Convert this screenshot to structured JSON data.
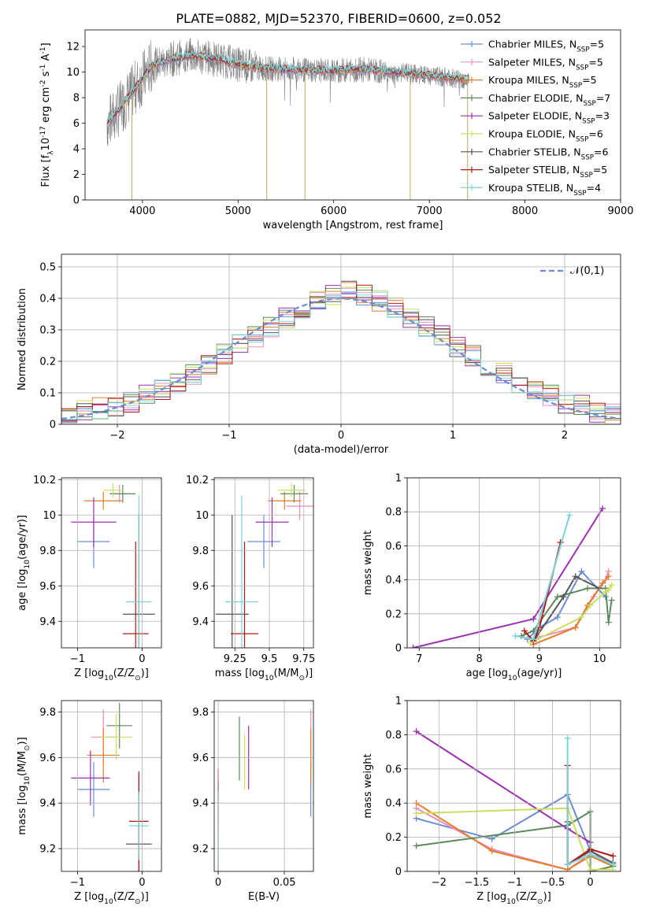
{
  "page_title": "PLATE=0882, MJD=52370, FIBERID=0600, z=0.052",
  "model_names": [
    "Chabrier MILES, N$_{SSP}$=5",
    "Salpeter MILES, N$_{SSP}$=5",
    "Kroupa MILES, N$_{SSP}$=5",
    "Chabrier ELODIE, N$_{SSP}$=7",
    "Salpeter ELODIE, N$_{SSP}$=3",
    "Kroupa ELODIE, N$_{SSP}$=6",
    "Chabrier STELIB, N$_{SSP}$=6",
    "Salpeter STELIB, N$_{SSP}$=5",
    "Kroupa STELIB, N$_{SSP}$=4"
  ],
  "model_colors": [
    "#6a8cd4",
    "#e88fbf",
    "#e87b2a",
    "#5a8a5a",
    "#9b2fb0",
    "#c8e060",
    "#555555",
    "#b01818",
    "#7ad4dc"
  ],
  "chart_data": [
    {
      "type": "line",
      "title": "PLATE=0882, MJD=52370, FIBERID=0600, z=0.052",
      "xlabel": "wavelength [Angstrom, rest frame]",
      "ylabel": "Flux [f$_\\lambda$10$^{-17}$ erg cm$^{-2}$ s$^{-1}$ A$^{-1}$]",
      "xlim": [
        3400,
        9000
      ],
      "ylim": [
        0,
        13.3
      ],
      "xticks": [
        4000,
        5000,
        6000,
        7000,
        8000,
        9000
      ],
      "yticks": [
        0,
        2,
        4,
        6,
        8,
        10,
        12
      ],
      "grid": false,
      "legend": "right",
      "data_range": [
        3630,
        7420
      ],
      "continuum": {
        "x": [
          3630,
          3700,
          3800,
          3900,
          4000,
          4100,
          4300,
          4500,
          4800,
          5000,
          5200,
          5500,
          6000,
          6300,
          6600,
          6800,
          7000,
          7200,
          7400
        ],
        "y": [
          6.0,
          6.5,
          7.5,
          8.5,
          9.5,
          10.5,
          11.0,
          11.3,
          11.0,
          10.6,
          10.3,
          10.2,
          10.1,
          10.2,
          10.0,
          9.9,
          9.7,
          9.6,
          9.4
        ]
      },
      "data_dips": [
        [
          3890,
          0
        ],
        [
          5300,
          0
        ],
        [
          5700,
          0
        ],
        [
          6800,
          0
        ],
        [
          7400,
          0
        ]
      ]
    },
    {
      "type": "bar",
      "xlabel": "(data-model)/error",
      "ylabel": "Normed distribution",
      "xlim": [
        -2.5,
        2.5
      ],
      "ylim": [
        0,
        0.54
      ],
      "xticks": [
        -2,
        -1,
        0,
        1,
        2
      ],
      "yticks": [
        0.0,
        0.1,
        0.2,
        0.3,
        0.4,
        0.5
      ],
      "grid": true,
      "legend": "top-right",
      "legend_label": "$\\mathcal{N}(0,1)$",
      "bins": 36,
      "base_values": [
        0.03,
        0.04,
        0.05,
        0.06,
        0.07,
        0.09,
        0.11,
        0.13,
        0.16,
        0.19,
        0.22,
        0.25,
        0.28,
        0.31,
        0.34,
        0.37,
        0.39,
        0.41,
        0.42,
        0.41,
        0.39,
        0.37,
        0.34,
        0.31,
        0.28,
        0.25,
        0.22,
        0.19,
        0.16,
        0.13,
        0.11,
        0.09,
        0.07,
        0.06,
        0.04,
        0.03
      ]
    },
    {
      "type": "scatter",
      "xlabel": "Z [log$_{10}$(Z/Z$_\\odot$)]",
      "ylabel": "age  [log$_{10}$(age/yr)]",
      "xlim": [
        -1.25,
        0.3
      ],
      "ylim": [
        9.25,
        10.21
      ],
      "xticks": [
        -1,
        0
      ],
      "yticks": [
        9.4,
        9.6,
        9.8,
        10.0,
        10.2
      ],
      "points": [
        {
          "x": -0.75,
          "y": 9.85,
          "xerr": 0.25,
          "yerr": 0.15
        },
        {
          "x": -0.35,
          "y": 10.12,
          "xerr": 0.15,
          "yerr": 0.05
        },
        {
          "x": -0.6,
          "y": 10.08,
          "xerr": 0.3,
          "yerr": 0.05
        },
        {
          "x": -0.3,
          "y": 10.12,
          "xerr": 0.2,
          "yerr": 0.05
        },
        {
          "x": -0.75,
          "y": 9.96,
          "xerr": 0.35,
          "yerr": 0.14
        },
        {
          "x": -0.45,
          "y": 10.14,
          "xerr": 0.15,
          "yerr": 0.04
        },
        {
          "x": -0.05,
          "y": 9.44,
          "xerr": 0.25,
          "yerr": 0.56
        },
        {
          "x": -0.1,
          "y": 9.33,
          "xerr": 0.2,
          "yerr": 0.52
        },
        {
          "x": -0.05,
          "y": 9.51,
          "xerr": 0.2,
          "yerr": 0.6
        }
      ]
    },
    {
      "type": "scatter",
      "xlabel": "mass [log$_{10}$(M/M$_\\odot$)]",
      "ylabel": "",
      "xlim": [
        9.1,
        9.82
      ],
      "ylim": [
        9.25,
        10.21
      ],
      "xticks": [
        9.25,
        9.5,
        9.75
      ],
      "yticks": [
        9.4,
        9.6,
        9.8,
        10.0,
        10.2
      ],
      "points": [
        {
          "x": 9.46,
          "y": 9.85,
          "xerr": 0.12,
          "yerr": 0.15
        },
        {
          "x": 9.72,
          "y": 10.05,
          "xerr": 0.1,
          "yerr": 0.08
        },
        {
          "x": 9.61,
          "y": 10.08,
          "xerr": 0.12,
          "yerr": 0.05
        },
        {
          "x": 9.68,
          "y": 10.12,
          "xerr": 0.1,
          "yerr": 0.05
        },
        {
          "x": 9.52,
          "y": 9.96,
          "xerr": 0.12,
          "yerr": 0.14
        },
        {
          "x": 9.66,
          "y": 10.14,
          "xerr": 0.1,
          "yerr": 0.04
        },
        {
          "x": 9.23,
          "y": 9.44,
          "xerr": 0.12,
          "yerr": 0.56
        },
        {
          "x": 9.32,
          "y": 9.33,
          "xerr": 0.1,
          "yerr": 0.52
        },
        {
          "x": 9.3,
          "y": 9.51,
          "xerr": 0.12,
          "yerr": 0.6
        }
      ]
    },
    {
      "type": "line",
      "xlabel": "age  [log$_{10}$(age/yr)]",
      "ylabel": "mass weight",
      "xlim": [
        6.8,
        10.35
      ],
      "ylim": [
        0,
        1
      ],
      "xticks": [
        7,
        8,
        9,
        10
      ],
      "yticks": [
        0.0,
        0.2,
        0.4,
        0.6,
        0.8,
        1.0
      ],
      "grid": true,
      "series": [
        {
          "x": [
            8.8,
            9.0,
            9.3,
            9.7,
            10.1
          ],
          "y": [
            0.05,
            0.12,
            0.18,
            0.45,
            0.3
          ]
        },
        {
          "x": [
            8.85,
            9.6,
            9.9,
            10.1,
            10.15
          ],
          "y": [
            0.05,
            0.12,
            0.3,
            0.4,
            0.45
          ]
        },
        {
          "x": [
            8.9,
            9.6,
            9.8,
            10.05,
            10.15
          ],
          "y": [
            0.02,
            0.12,
            0.25,
            0.38,
            0.42
          ]
        },
        {
          "x": [
            8.7,
            8.9,
            9.3,
            9.8,
            10.1,
            10.15,
            10.2
          ],
          "y": [
            0.07,
            0.1,
            0.3,
            0.35,
            0.35,
            0.15,
            0.28
          ]
        },
        {
          "x": [
            6.9,
            8.9,
            10.05
          ],
          "y": [
            0.0,
            0.17,
            0.82
          ]
        },
        {
          "x": [
            8.85,
            9.7,
            9.85,
            10.1,
            10.15,
            10.2
          ],
          "y": [
            0.03,
            0.18,
            0.25,
            0.33,
            0.34,
            0.37
          ]
        },
        {
          "x": [
            8.9,
            9.4,
            9.6,
            10.0
          ],
          "y": [
            0.04,
            0.3,
            0.42,
            0.35
          ]
        },
        {
          "x": [
            8.75,
            8.9,
            9.0,
            9.35
          ],
          "y": [
            0.1,
            0.04,
            0.12,
            0.62
          ]
        },
        {
          "x": [
            8.6,
            8.9,
            9.5
          ],
          "y": [
            0.07,
            0.05,
            0.78
          ]
        }
      ]
    },
    {
      "type": "scatter",
      "xlabel": "Z [log$_{10}$(Z/Z$_\\odot$)]",
      "ylabel": "mass [log$_{10}$(M/M$_\\odot$)]",
      "xlim": [
        -1.25,
        0.3
      ],
      "ylim": [
        9.1,
        9.85
      ],
      "xticks": [
        -1,
        0
      ],
      "yticks": [
        9.2,
        9.4,
        9.6,
        9.8
      ],
      "points": [
        {
          "x": -0.75,
          "y": 9.46,
          "xerr": 0.25,
          "yerr": 0.12
        },
        {
          "x": -0.6,
          "y": 9.69,
          "xerr": 0.2,
          "yerr": 0.12
        },
        {
          "x": -0.6,
          "y": 9.61,
          "xerr": 0.25,
          "yerr": 0.12
        },
        {
          "x": -0.35,
          "y": 9.74,
          "xerr": 0.2,
          "yerr": 0.1
        },
        {
          "x": -0.8,
          "y": 9.51,
          "xerr": 0.3,
          "yerr": 0.12
        },
        {
          "x": -0.4,
          "y": 9.69,
          "xerr": 0.25,
          "yerr": 0.1
        },
        {
          "x": -0.05,
          "y": 9.22,
          "xerr": 0.2,
          "yerr": 0.3
        },
        {
          "x": -0.05,
          "y": 9.32,
          "xerr": 0.15,
          "yerr": 0.22
        },
        {
          "x": -0.05,
          "y": 9.3,
          "xerr": 0.15,
          "yerr": 0.15
        }
      ]
    },
    {
      "type": "scatter",
      "xlabel": "E(B-V)",
      "ylabel": "",
      "xlim": [
        -0.003,
        0.072
      ],
      "ylim": [
        9.1,
        9.85
      ],
      "xticks": [
        0.0,
        0.05
      ],
      "yticks": [
        9.2,
        9.4,
        9.6,
        9.8
      ],
      "points": [
        {
          "x": 0.07,
          "y": 9.46,
          "xerr": 0,
          "yerr": 0.12
        },
        {
          "x": 0.07,
          "y": 9.69,
          "xerr": 0,
          "yerr": 0.12
        },
        {
          "x": 0.07,
          "y": 9.61,
          "xerr": 0,
          "yerr": 0.12
        },
        {
          "x": 0.016,
          "y": 9.64,
          "xerr": 0,
          "yerr": 0.14
        },
        {
          "x": 0.023,
          "y": 9.6,
          "xerr": 0,
          "yerr": 0.14
        },
        {
          "x": 0.02,
          "y": 9.58,
          "xerr": 0,
          "yerr": 0.12
        },
        {
          "x": 0.0,
          "y": 9.3,
          "xerr": 0,
          "yerr": 0.2
        },
        {
          "x": 0.0,
          "y": 9.5,
          "xerr": 0,
          "yerr": 0.05
        },
        {
          "x": 0.0,
          "y": 9.2,
          "xerr": 0,
          "yerr": 0.08
        }
      ]
    },
    {
      "type": "line",
      "xlabel": "Z [log$_{10}$(Z/Z$_\\odot$)]",
      "ylabel": "mass weight",
      "xlim": [
        -2.42,
        0.4
      ],
      "ylim": [
        0,
        1
      ],
      "xticks": [
        -2.0,
        -1.5,
        -1.0,
        -0.5,
        0.0
      ],
      "yticks": [
        0.0,
        0.2,
        0.4,
        0.6,
        0.8,
        1.0
      ],
      "grid": true,
      "series": [
        {
          "x": [
            -2.3,
            -1.3,
            -0.3,
            0.0,
            0.3
          ],
          "y": [
            0.31,
            0.19,
            0.45,
            0.12,
            0.04
          ]
        },
        {
          "x": [
            -2.3,
            -1.3,
            -0.3,
            0.0,
            0.3
          ],
          "y": [
            0.37,
            0.13,
            0.01,
            0.1,
            0.05
          ]
        },
        {
          "x": [
            -2.3,
            -1.3,
            -0.3,
            0.0,
            0.3
          ],
          "y": [
            0.4,
            0.12,
            0.01,
            0.09,
            0.03
          ]
        },
        {
          "x": [
            -2.3,
            -0.3,
            0.0,
            0.0,
            0.3
          ],
          "y": [
            0.15,
            0.27,
            0.35,
            0.0,
            0.03
          ]
        },
        {
          "x": [
            -2.3,
            -0.3,
            0.0
          ],
          "y": [
            0.82,
            0.25,
            0.17
          ]
        },
        {
          "x": [
            -2.3,
            -0.3,
            0.0,
            0.3
          ],
          "y": [
            0.34,
            0.37,
            0.01,
            0.01
          ]
        },
        {
          "x": [
            -0.3,
            -0.3,
            0.0,
            0.3
          ],
          "y": [
            0.29,
            0.04,
            0.12,
            0.05
          ]
        },
        {
          "x": [
            -0.3,
            -0.3,
            0.0,
            0.3
          ],
          "y": [
            0.62,
            0.04,
            0.13,
            0.09
          ]
        },
        {
          "x": [
            -0.3,
            -0.3,
            0.0,
            0.3
          ],
          "y": [
            0.78,
            0.04,
            0.1,
            0.04
          ]
        }
      ]
    }
  ]
}
